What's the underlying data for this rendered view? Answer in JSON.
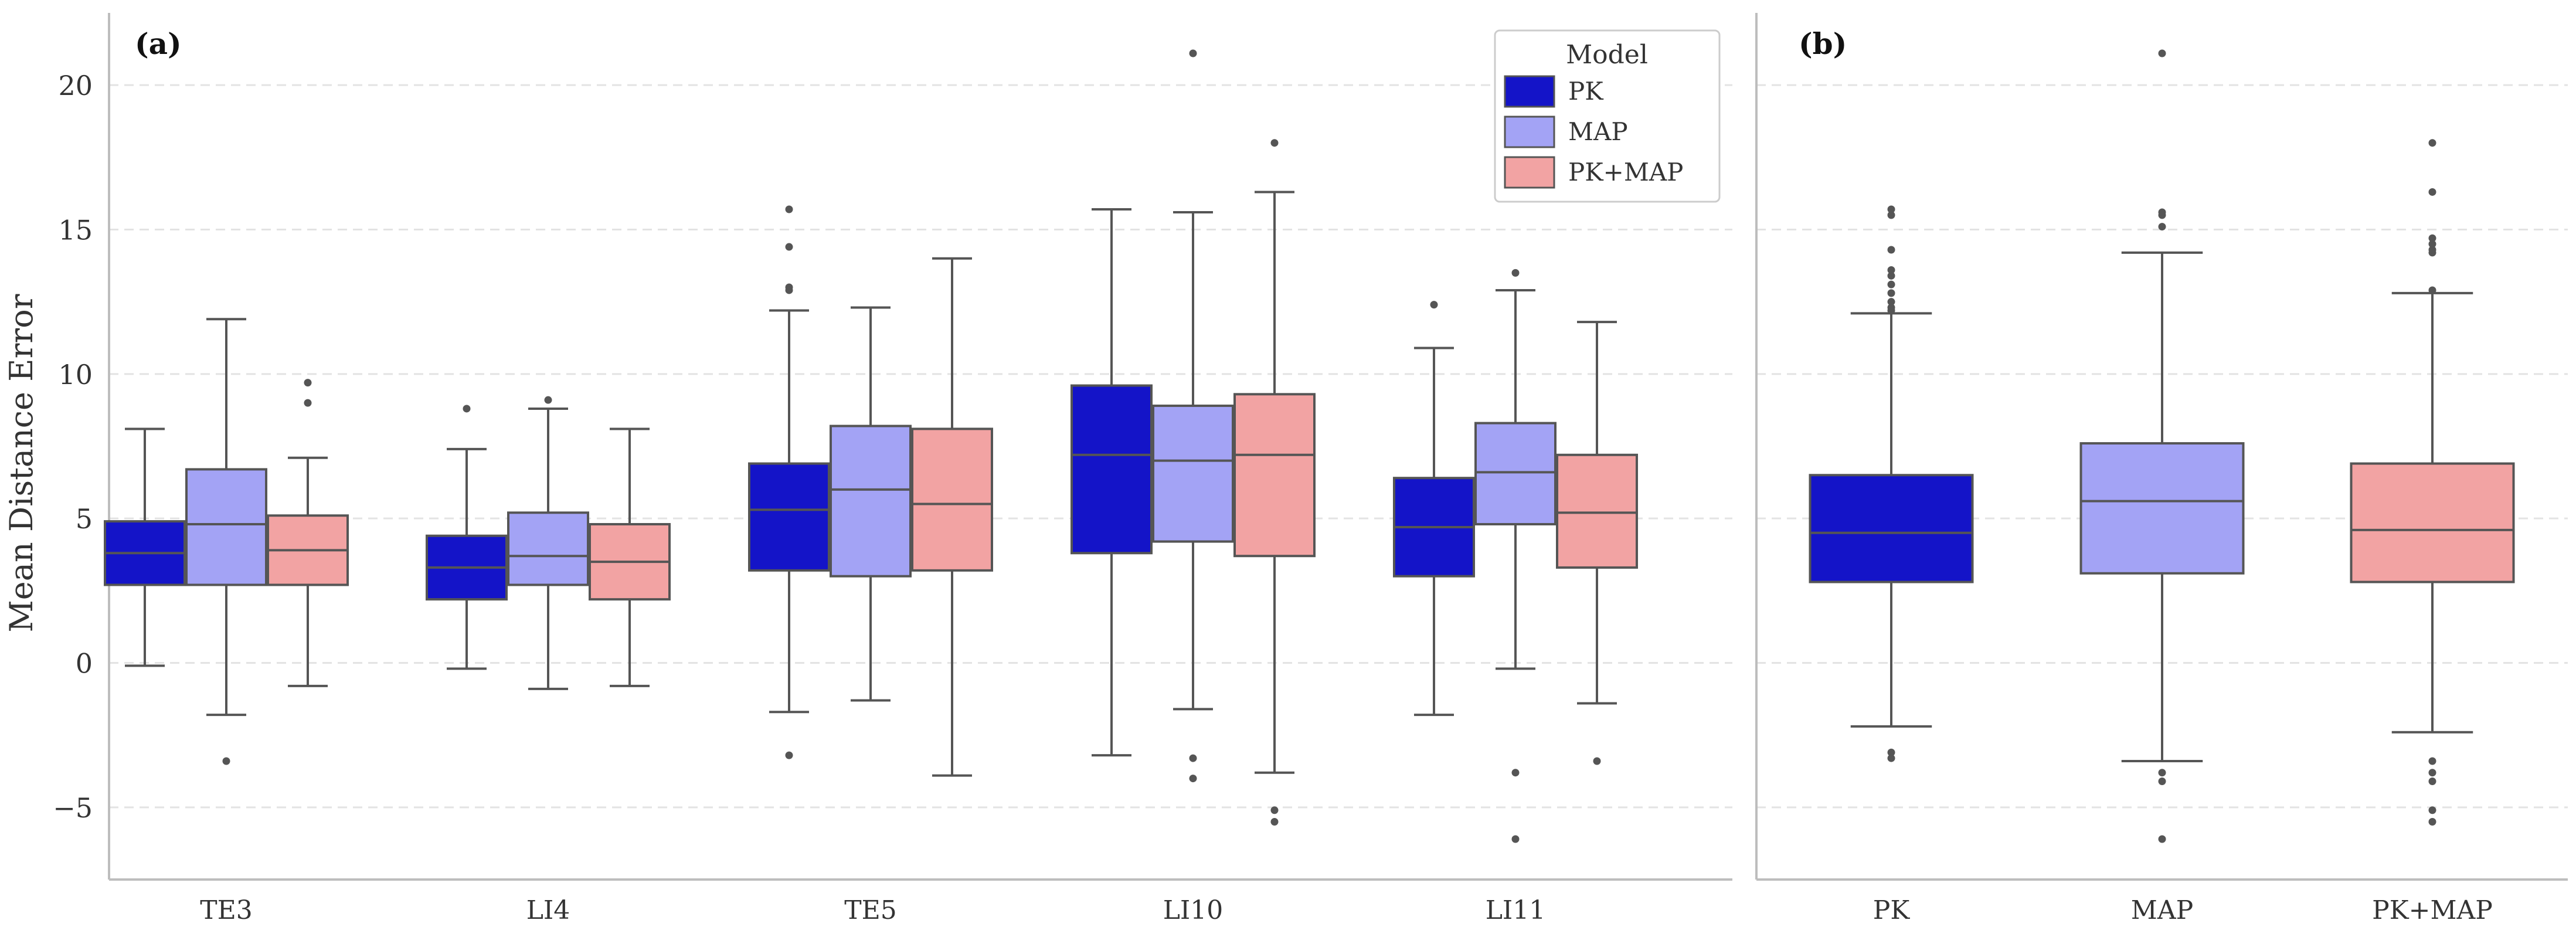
{
  "colors": {
    "PK": "#1414c8",
    "MAP": "#a3a3f5",
    "PK+MAP": "#f2a3a3",
    "box_edge": "#555555",
    "outlier": "#555555",
    "grid": "#e3e3e3",
    "axis": "#bdbdbd",
    "text": "#333333"
  },
  "chart_data": [
    {
      "panel_label": "(a)",
      "type": "box",
      "ylabel": "Mean Distance Error",
      "xlabel": "",
      "ylim": [
        -7.5,
        22.5
      ],
      "yticks": [
        -5,
        0,
        5,
        10,
        15,
        20
      ],
      "ytick_labels": [
        "−5",
        "0",
        "5",
        "10",
        "15",
        "20"
      ],
      "grid": "horizontal-dashed",
      "categories": [
        "TE3",
        "LI4",
        "TE5",
        "LI10",
        "LI11"
      ],
      "legend": {
        "title": "Model",
        "placement": "top-right",
        "entries": [
          "PK",
          "MAP",
          "PK+MAP"
        ]
      },
      "series": [
        {
          "name": "PK",
          "boxes": [
            {
              "min": -0.1,
              "q1": 2.7,
              "median": 3.8,
              "q3": 4.9,
              "max": 8.1,
              "outliers": []
            },
            {
              "min": -0.2,
              "q1": 2.2,
              "median": 3.3,
              "q3": 4.4,
              "max": 7.4,
              "outliers": [
                8.8
              ]
            },
            {
              "min": -1.7,
              "q1": 3.2,
              "median": 5.3,
              "q3": 6.9,
              "max": 12.2,
              "outliers": [
                -3.2,
                12.9,
                13.0,
                14.4,
                15.7
              ]
            },
            {
              "min": -3.2,
              "q1": 3.8,
              "median": 7.2,
              "q3": 9.6,
              "max": 15.7,
              "outliers": []
            },
            {
              "min": -1.8,
              "q1": 3.0,
              "median": 4.7,
              "q3": 6.4,
              "max": 10.9,
              "outliers": [
                12.4
              ]
            }
          ]
        },
        {
          "name": "MAP",
          "boxes": [
            {
              "min": -1.8,
              "q1": 2.7,
              "median": 4.8,
              "q3": 6.7,
              "max": 11.9,
              "outliers": [
                -3.4
              ]
            },
            {
              "min": -0.9,
              "q1": 2.7,
              "median": 3.7,
              "q3": 5.2,
              "max": 8.8,
              "outliers": [
                9.1
              ]
            },
            {
              "min": -1.3,
              "q1": 3.0,
              "median": 6.0,
              "q3": 8.2,
              "max": 12.3,
              "outliers": []
            },
            {
              "min": -1.6,
              "q1": 4.2,
              "median": 7.0,
              "q3": 8.9,
              "max": 15.6,
              "outliers": [
                -3.3,
                -4.0,
                21.1
              ]
            },
            {
              "min": -0.2,
              "q1": 4.8,
              "median": 6.6,
              "q3": 8.3,
              "max": 12.9,
              "outliers": [
                -3.8,
                -6.1,
                13.5
              ]
            }
          ]
        },
        {
          "name": "PK+MAP",
          "boxes": [
            {
              "min": -0.8,
              "q1": 2.7,
              "median": 3.9,
              "q3": 5.1,
              "max": 7.1,
              "outliers": [
                9.0,
                9.7
              ]
            },
            {
              "min": -0.8,
              "q1": 2.2,
              "median": 3.5,
              "q3": 4.8,
              "max": 8.1,
              "outliers": []
            },
            {
              "min": -3.9,
              "q1": 3.2,
              "median": 5.5,
              "q3": 8.1,
              "max": 14.0,
              "outliers": []
            },
            {
              "min": -3.8,
              "q1": 3.7,
              "median": 7.2,
              "q3": 9.3,
              "max": 16.3,
              "outliers": [
                -5.1,
                -5.5,
                18.0
              ]
            },
            {
              "min": -1.4,
              "q1": 3.3,
              "median": 5.2,
              "q3": 7.2,
              "max": 11.8,
              "outliers": [
                -3.4
              ]
            }
          ]
        }
      ]
    },
    {
      "panel_label": "(b)",
      "type": "box",
      "ylim": [
        -7.5,
        22.5
      ],
      "yticks": [
        -5,
        0,
        5,
        10,
        15,
        20
      ],
      "grid": "horizontal-dashed",
      "categories": [
        "PK",
        "MAP",
        "PK+MAP"
      ],
      "boxes": [
        {
          "name": "PK",
          "min": -2.2,
          "q1": 2.8,
          "median": 4.5,
          "q3": 6.5,
          "max": 12.1,
          "outliers": [
            -3.1,
            -3.3,
            12.2,
            12.3,
            12.5,
            12.8,
            13.1,
            13.4,
            13.6,
            14.3,
            15.5,
            15.7
          ]
        },
        {
          "name": "MAP",
          "min": -3.4,
          "q1": 3.1,
          "median": 5.6,
          "q3": 7.6,
          "max": 14.2,
          "outliers": [
            -3.8,
            -4.1,
            -6.1,
            15.1,
            15.5,
            15.6,
            21.1
          ]
        },
        {
          "name": "PK+MAP",
          "min": -2.4,
          "q1": 2.8,
          "median": 4.6,
          "q3": 6.9,
          "max": 12.8,
          "outliers": [
            -3.4,
            -3.8,
            -4.1,
            -5.1,
            -5.5,
            12.9,
            14.2,
            14.3,
            14.5,
            14.7,
            16.3,
            18.0
          ]
        }
      ]
    }
  ]
}
